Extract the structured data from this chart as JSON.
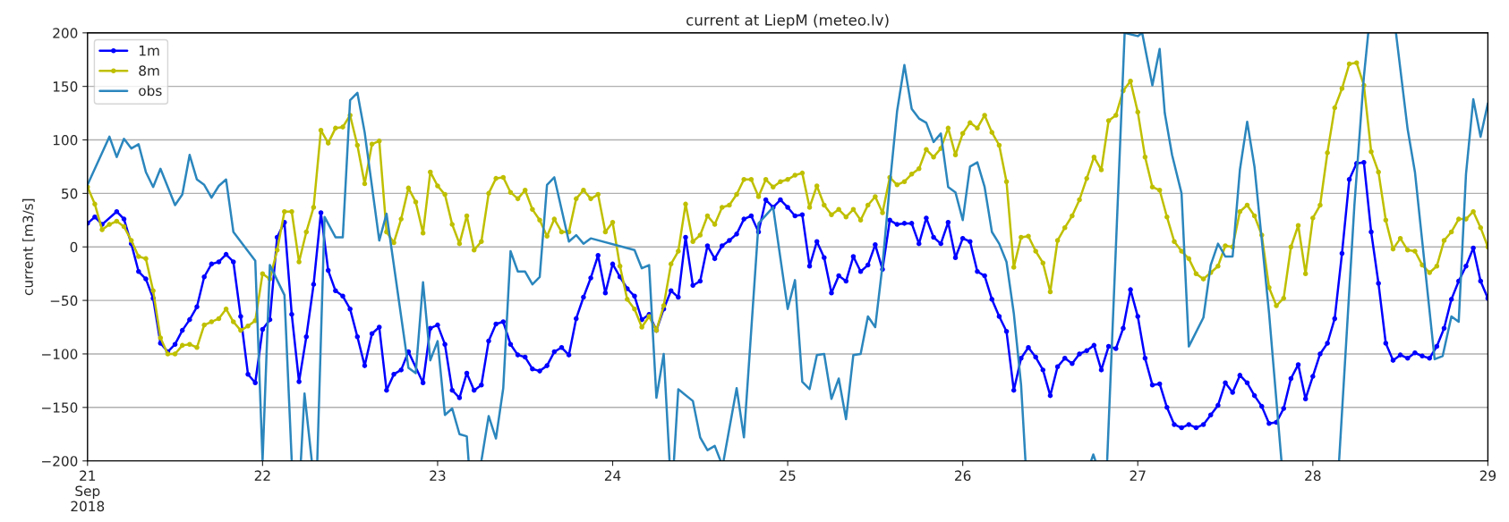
{
  "chart_data": {
    "type": "line",
    "title": "current at LiepM (meteo.lv)",
    "ylabel": "current [m3/s]",
    "xlim": [
      "2018-09-21",
      "2018-09-29"
    ],
    "xticks": [
      {
        "value": "2018-09-21",
        "label": "21\nSep\n2018"
      },
      {
        "value": "2018-09-22",
        "label": "22"
      },
      {
        "value": "2018-09-23",
        "label": "23"
      },
      {
        "value": "2018-09-24",
        "label": "24"
      },
      {
        "value": "2018-09-25",
        "label": "25"
      },
      {
        "value": "2018-09-26",
        "label": "26"
      },
      {
        "value": "2018-09-27",
        "label": "27"
      },
      {
        "value": "2018-09-28",
        "label": "28"
      },
      {
        "value": "2018-09-29",
        "label": "29"
      }
    ],
    "ylim": [
      -200,
      200
    ],
    "yticks": [
      -200,
      -150,
      -100,
      -50,
      0,
      50,
      100,
      150,
      200
    ],
    "grid": "y",
    "legend": "top left",
    "line_style": "solid",
    "series": [
      {
        "name": "1m",
        "color": "#0000ff",
        "marker": "circle",
        "x": [
          "2018-09-21T00:00",
          "2018-09-21T01:00",
          "2018-09-21T02:00",
          "2018-09-21T04:00",
          "2018-09-21T05:00",
          "2018-09-21T06:00",
          "2018-09-21T07:00",
          "2018-09-21T08:00",
          "2018-09-21T09:00",
          "2018-09-21T10:00",
          "2018-09-21T11:00",
          "2018-09-21T12:00",
          "2018-09-21T13:00",
          "2018-09-21T14:00",
          "2018-09-21T15:00",
          "2018-09-21T16:00",
          "2018-09-21T17:00",
          "2018-09-21T18:00",
          "2018-09-21T19:00",
          "2018-09-21T20:00",
          "2018-09-21T21:00",
          "2018-09-21T22:00",
          "2018-09-21T23:00",
          "2018-09-22T00:00",
          "2018-09-22T01:00",
          "2018-09-22T02:00",
          "2018-09-22T03:00",
          "2018-09-22T04:00",
          "2018-09-22T05:00",
          "2018-09-22T06:00",
          "2018-09-22T07:00",
          "2018-09-22T08:00",
          "2018-09-22T09:00",
          "2018-09-22T10:00",
          "2018-09-22T11:00",
          "2018-09-22T12:00",
          "2018-09-22T13:00",
          "2018-09-22T14:00",
          "2018-09-22T15:00",
          "2018-09-22T16:00",
          "2018-09-22T17:00",
          "2018-09-22T18:00",
          "2018-09-22T19:00",
          "2018-09-22T20:00",
          "2018-09-22T22:00",
          "2018-09-22T23:00",
          "2018-09-23T00:00",
          "2018-09-23T01:00",
          "2018-09-23T02:00",
          "2018-09-23T03:00",
          "2018-09-23T04:00",
          "2018-09-23T05:00",
          "2018-09-23T06:00",
          "2018-09-23T07:00",
          "2018-09-23T08:00",
          "2018-09-23T09:00",
          "2018-09-23T10:00",
          "2018-09-23T11:00",
          "2018-09-23T12:00",
          "2018-09-23T13:00",
          "2018-09-23T14:00",
          "2018-09-23T15:00",
          "2018-09-23T16:00",
          "2018-09-23T17:00",
          "2018-09-23T18:00",
          "2018-09-23T19:00",
          "2018-09-23T20:00",
          "2018-09-23T21:00",
          "2018-09-23T22:00",
          "2018-09-23T23:00",
          "2018-09-24T00:00",
          "2018-09-24T01:00",
          "2018-09-24T02:00",
          "2018-09-24T03:00",
          "2018-09-24T04:00",
          "2018-09-24T05:00",
          "2018-09-24T06:00",
          "2018-09-24T07:00",
          "2018-09-24T08:00",
          "2018-09-24T09:00",
          "2018-09-24T10:00",
          "2018-09-24T11:00",
          "2018-09-24T12:00",
          "2018-09-24T13:00",
          "2018-09-24T14:00",
          "2018-09-24T15:00",
          "2018-09-24T16:00",
          "2018-09-24T17:00",
          "2018-09-24T18:00",
          "2018-09-24T19:00",
          "2018-09-24T20:00",
          "2018-09-24T21:00",
          "2018-09-24T22:00",
          "2018-09-24T23:00",
          "2018-09-25T00:00",
          "2018-09-25T01:00",
          "2018-09-25T02:00",
          "2018-09-25T03:00",
          "2018-09-25T04:00",
          "2018-09-25T05:00",
          "2018-09-25T06:00",
          "2018-09-25T07:00",
          "2018-09-25T08:00",
          "2018-09-25T09:00",
          "2018-09-25T10:00",
          "2018-09-25T11:00",
          "2018-09-25T12:00",
          "2018-09-25T13:00",
          "2018-09-25T14:00",
          "2018-09-25T15:00",
          "2018-09-25T16:00",
          "2018-09-25T17:00",
          "2018-09-25T18:00",
          "2018-09-25T19:00",
          "2018-09-25T20:00",
          "2018-09-25T21:00",
          "2018-09-25T22:00",
          "2018-09-25T23:00",
          "2018-09-26T00:00",
          "2018-09-26T01:00",
          "2018-09-26T02:00",
          "2018-09-26T03:00",
          "2018-09-26T04:00",
          "2018-09-26T05:00",
          "2018-09-26T06:00",
          "2018-09-26T07:00",
          "2018-09-26T08:00",
          "2018-09-26T09:00",
          "2018-09-26T10:00",
          "2018-09-26T11:00",
          "2018-09-26T12:00",
          "2018-09-26T13:00",
          "2018-09-26T14:00",
          "2018-09-26T15:00",
          "2018-09-26T16:00",
          "2018-09-26T17:00",
          "2018-09-26T18:00",
          "2018-09-26T19:00",
          "2018-09-26T20:00",
          "2018-09-26T21:00",
          "2018-09-26T22:00",
          "2018-09-26T23:00",
          "2018-09-27T00:00",
          "2018-09-27T01:00",
          "2018-09-27T02:00",
          "2018-09-27T03:00",
          "2018-09-27T04:00",
          "2018-09-27T05:00",
          "2018-09-27T06:00",
          "2018-09-27T07:00",
          "2018-09-27T08:00",
          "2018-09-27T09:00",
          "2018-09-27T10:00",
          "2018-09-27T11:00",
          "2018-09-27T12:00",
          "2018-09-27T13:00",
          "2018-09-27T14:00",
          "2018-09-27T15:00",
          "2018-09-27T16:00",
          "2018-09-27T17:00",
          "2018-09-27T18:00",
          "2018-09-27T19:00",
          "2018-09-27T20:00",
          "2018-09-27T21:00",
          "2018-09-27T22:00",
          "2018-09-27T23:00",
          "2018-09-28T00:00",
          "2018-09-28T01:00",
          "2018-09-28T02:00",
          "2018-09-28T03:00",
          "2018-09-28T04:00",
          "2018-09-28T05:00",
          "2018-09-28T06:00",
          "2018-09-28T07:00",
          "2018-09-28T08:00",
          "2018-09-28T09:00",
          "2018-09-28T10:00",
          "2018-09-28T11:00",
          "2018-09-28T12:00",
          "2018-09-28T13:00",
          "2018-09-28T14:00",
          "2018-09-28T15:00",
          "2018-09-28T16:00",
          "2018-09-28T17:00",
          "2018-09-28T18:00",
          "2018-09-28T19:00",
          "2018-09-28T20:00",
          "2018-09-28T21:00",
          "2018-09-28T22:00",
          "2018-09-28T23:00",
          "2018-09-29T00:00"
        ],
        "values": [
          22,
          28,
          21,
          33,
          26,
          3,
          -23,
          -30,
          -48,
          -90,
          -98,
          -91,
          -78,
          -68,
          -56,
          -28,
          -16,
          -14,
          -7,
          -14,
          -65,
          -119,
          -127,
          -77,
          -68,
          9,
          23,
          -63,
          -126,
          -84,
          -35,
          32,
          -22,
          -41,
          -46,
          -58,
          -84,
          -111,
          -81,
          -75,
          -134,
          -119,
          -115,
          -98,
          -127,
          -76,
          -73,
          -91,
          -134,
          -141,
          -118,
          -134,
          -129,
          -88,
          -72,
          -70,
          -91,
          -101,
          -103,
          -114,
          -116,
          -111,
          -98,
          -94,
          -101,
          -67,
          -47,
          -29,
          -8,
          -43,
          -16,
          -28,
          -39,
          -46,
          -68,
          -63,
          -78,
          -58,
          -41,
          -47,
          9,
          -36,
          -32,
          1,
          -11,
          1,
          6,
          12,
          26,
          29,
          14,
          44,
          37,
          44,
          37,
          29,
          30,
          -18,
          5,
          -10,
          -43,
          -27,
          -32,
          -9,
          -23,
          -17,
          2,
          -21,
          25,
          21,
          22,
          22,
          3,
          27,
          9,
          3,
          23,
          -10,
          8,
          5,
          -23,
          -27,
          -49,
          -65,
          -79,
          -134,
          -104,
          -94,
          -103,
          -115,
          -139,
          -112,
          -104,
          -109,
          -100,
          -97,
          -92,
          -115,
          -93,
          -95,
          -76,
          -40,
          -65,
          -104,
          -129,
          -128,
          -150,
          -166,
          -169,
          -166,
          -169,
          -166,
          -157,
          -148,
          -127,
          -136,
          -120,
          -127,
          -139,
          -149,
          -165,
          -164,
          -151,
          -123,
          -110,
          -142,
          -121,
          -100,
          -90,
          -67,
          -6,
          63,
          78,
          79,
          14,
          -34,
          -90,
          -106,
          -101,
          -104,
          -99,
          -102,
          -104,
          -93,
          -76,
          -49,
          -32,
          -18,
          -1,
          -32,
          -48
        ]
      },
      {
        "name": "8m",
        "color": "#bfbf00",
        "marker": "circle",
        "x": [
          "2018-09-21T00:00",
          "2018-09-21T01:00",
          "2018-09-21T02:00",
          "2018-09-21T03:00",
          "2018-09-21T04:00",
          "2018-09-21T05:00",
          "2018-09-21T06:00",
          "2018-09-21T07:00",
          "2018-09-21T08:00",
          "2018-09-21T09:00",
          "2018-09-21T10:00",
          "2018-09-21T11:00",
          "2018-09-21T12:00",
          "2018-09-21T13:00",
          "2018-09-21T14:00",
          "2018-09-21T15:00",
          "2018-09-21T16:00",
          "2018-09-21T17:00",
          "2018-09-21T18:00",
          "2018-09-21T19:00",
          "2018-09-21T20:00",
          "2018-09-21T21:00",
          "2018-09-21T22:00",
          "2018-09-21T23:00",
          "2018-09-22T00:00",
          "2018-09-22T01:00",
          "2018-09-22T02:00",
          "2018-09-22T03:00",
          "2018-09-22T04:00",
          "2018-09-22T05:00",
          "2018-09-22T06:00",
          "2018-09-22T07:00",
          "2018-09-22T08:00",
          "2018-09-22T09:00",
          "2018-09-22T10:00",
          "2018-09-22T11:00",
          "2018-09-22T12:00",
          "2018-09-22T13:00",
          "2018-09-22T14:00",
          "2018-09-22T15:00",
          "2018-09-22T16:00",
          "2018-09-22T17:00",
          "2018-09-22T18:00",
          "2018-09-22T19:00",
          "2018-09-22T20:00",
          "2018-09-22T21:00",
          "2018-09-22T22:00",
          "2018-09-22T23:00",
          "2018-09-23T00:00",
          "2018-09-23T01:00",
          "2018-09-23T02:00",
          "2018-09-23T03:00",
          "2018-09-23T04:00",
          "2018-09-23T05:00",
          "2018-09-23T06:00",
          "2018-09-23T07:00",
          "2018-09-23T08:00",
          "2018-09-23T09:00",
          "2018-09-23T10:00",
          "2018-09-23T11:00",
          "2018-09-23T12:00",
          "2018-09-23T13:00",
          "2018-09-23T14:00",
          "2018-09-23T15:00",
          "2018-09-23T16:00",
          "2018-09-23T17:00",
          "2018-09-23T18:00",
          "2018-09-23T19:00",
          "2018-09-23T20:00",
          "2018-09-23T21:00",
          "2018-09-23T22:00",
          "2018-09-23T23:00",
          "2018-09-24T00:00",
          "2018-09-24T01:00",
          "2018-09-24T02:00",
          "2018-09-24T03:00",
          "2018-09-24T04:00",
          "2018-09-24T05:00",
          "2018-09-24T06:00",
          "2018-09-24T07:00",
          "2018-09-24T08:00",
          "2018-09-24T09:00",
          "2018-09-24T10:00",
          "2018-09-24T11:00",
          "2018-09-24T12:00",
          "2018-09-24T13:00",
          "2018-09-24T14:00",
          "2018-09-24T15:00",
          "2018-09-24T16:00",
          "2018-09-24T17:00",
          "2018-09-24T18:00",
          "2018-09-24T19:00",
          "2018-09-24T20:00",
          "2018-09-24T21:00",
          "2018-09-24T22:00",
          "2018-09-24T23:00",
          "2018-09-25T00:00",
          "2018-09-25T01:00",
          "2018-09-25T02:00",
          "2018-09-25T03:00",
          "2018-09-25T04:00",
          "2018-09-25T05:00",
          "2018-09-25T06:00",
          "2018-09-25T07:00",
          "2018-09-25T08:00",
          "2018-09-25T09:00",
          "2018-09-25T10:00",
          "2018-09-25T11:00",
          "2018-09-25T12:00",
          "2018-09-25T13:00",
          "2018-09-25T14:00",
          "2018-09-25T15:00",
          "2018-09-25T16:00",
          "2018-09-25T17:00",
          "2018-09-25T18:00",
          "2018-09-25T19:00",
          "2018-09-25T20:00",
          "2018-09-25T21:00",
          "2018-09-25T22:00",
          "2018-09-25T23:00",
          "2018-09-26T00:00",
          "2018-09-26T01:00",
          "2018-09-26T02:00",
          "2018-09-26T03:00",
          "2018-09-26T04:00",
          "2018-09-26T05:00",
          "2018-09-26T06:00",
          "2018-09-26T07:00",
          "2018-09-26T08:00",
          "2018-09-26T09:00",
          "2018-09-26T10:00",
          "2018-09-26T11:00",
          "2018-09-26T12:00",
          "2018-09-26T13:00",
          "2018-09-26T14:00",
          "2018-09-26T15:00",
          "2018-09-26T16:00",
          "2018-09-26T17:00",
          "2018-09-26T18:00",
          "2018-09-26T19:00",
          "2018-09-26T20:00",
          "2018-09-26T21:00",
          "2018-09-26T22:00",
          "2018-09-26T23:00",
          "2018-09-27T00:00",
          "2018-09-27T01:00",
          "2018-09-27T02:00",
          "2018-09-27T03:00",
          "2018-09-27T04:00",
          "2018-09-27T05:00",
          "2018-09-27T06:00",
          "2018-09-27T07:00",
          "2018-09-27T08:00",
          "2018-09-27T09:00",
          "2018-09-27T10:00",
          "2018-09-27T11:00",
          "2018-09-27T12:00",
          "2018-09-27T13:00",
          "2018-09-27T14:00",
          "2018-09-27T15:00",
          "2018-09-27T16:00",
          "2018-09-27T17:00",
          "2018-09-27T18:00",
          "2018-09-27T19:00",
          "2018-09-27T20:00",
          "2018-09-27T21:00",
          "2018-09-27T22:00",
          "2018-09-27T23:00",
          "2018-09-28T00:00",
          "2018-09-28T01:00",
          "2018-09-28T02:00",
          "2018-09-28T03:00",
          "2018-09-28T04:00",
          "2018-09-28T05:00",
          "2018-09-28T06:00",
          "2018-09-28T07:00",
          "2018-09-28T08:00",
          "2018-09-28T09:00",
          "2018-09-28T10:00",
          "2018-09-28T11:00",
          "2018-09-28T12:00",
          "2018-09-28T13:00",
          "2018-09-28T14:00",
          "2018-09-28T15:00",
          "2018-09-28T16:00",
          "2018-09-28T17:00",
          "2018-09-28T18:00",
          "2018-09-28T19:00",
          "2018-09-28T20:00",
          "2018-09-28T21:00",
          "2018-09-28T22:00",
          "2018-09-28T23:00",
          "2018-09-29T00:00"
        ],
        "values": [
          56,
          40,
          16,
          21,
          24,
          19,
          6,
          -9,
          -11,
          -41,
          -85,
          -100,
          -100,
          -92,
          -91,
          -94,
          -73,
          -70,
          -67,
          -58,
          -70,
          -78,
          -74,
          -69,
          -25,
          -30,
          -3,
          33,
          33,
          -14,
          14,
          37,
          109,
          97,
          111,
          112,
          123,
          95,
          59,
          96,
          99,
          14,
          4,
          26,
          55,
          42,
          13,
          70,
          57,
          49,
          21,
          3,
          29,
          -3,
          5,
          50,
          64,
          65,
          51,
          45,
          53,
          35,
          25,
          10,
          26,
          14,
          14,
          45,
          53,
          45,
          49,
          14,
          23,
          -18,
          -49,
          -58,
          -75,
          -65,
          -78,
          -55,
          -16,
          -4,
          40,
          5,
          11,
          29,
          21,
          37,
          39,
          49,
          63,
          63,
          47,
          63,
          56,
          61,
          63,
          67,
          69,
          37,
          57,
          39,
          30,
          35,
          28,
          35,
          25,
          39,
          47,
          32,
          65,
          58,
          61,
          68,
          73,
          91,
          84,
          92,
          111,
          86,
          106,
          116,
          111,
          123,
          107,
          95,
          61,
          -19,
          9,
          10,
          -4,
          -15,
          -42,
          6,
          18,
          29,
          44,
          64,
          84,
          72,
          118,
          123,
          146,
          155,
          126,
          84,
          56,
          53,
          28,
          5,
          -4,
          -11,
          -25,
          -30,
          -24,
          -18,
          1,
          0,
          33,
          39,
          29,
          11,
          -38,
          -55,
          -48,
          0,
          20,
          -25,
          27,
          39,
          88,
          130,
          148,
          171,
          172,
          151,
          89,
          70,
          25,
          -2,
          8,
          -3,
          -4,
          -17,
          -24,
          -18,
          6,
          14,
          26,
          26,
          33,
          18,
          0
        ]
      },
      {
        "name": "obs",
        "color": "#2b86bd",
        "marker": "none",
        "x": [
          "2018-09-21T00:00",
          "2018-09-21T03:00",
          "2018-09-21T04:00",
          "2018-09-21T05:00",
          "2018-09-21T06:00",
          "2018-09-21T07:00",
          "2018-09-21T08:00",
          "2018-09-21T09:00",
          "2018-09-21T10:00",
          "2018-09-21T12:00",
          "2018-09-21T13:00",
          "2018-09-21T14:00",
          "2018-09-21T15:00",
          "2018-09-21T16:00",
          "2018-09-21T17:00",
          "2018-09-21T18:00",
          "2018-09-21T19:00",
          "2018-09-21T20:00",
          "2018-09-21T23:00",
          "2018-09-22T00:00",
          "2018-09-22T01:00",
          "2018-09-22T03:00",
          "2018-09-22T04:00",
          "2018-09-22T04:30",
          "2018-09-22T05:15",
          "2018-09-22T05:45",
          "2018-09-22T06:45",
          "2018-09-22T07:00",
          "2018-09-22T07:30",
          "2018-09-22T08:30",
          "2018-09-22T10:00",
          "2018-09-22T11:00",
          "2018-09-22T12:00",
          "2018-09-22T13:00",
          "2018-09-22T14:00",
          "2018-09-22T16:00",
          "2018-09-22T17:00",
          "2018-09-22T20:00",
          "2018-09-22T21:00",
          "2018-09-22T22:00",
          "2018-09-22T23:00",
          "2018-09-23T00:00",
          "2018-09-23T01:00",
          "2018-09-23T02:00",
          "2018-09-23T03:00",
          "2018-09-23T04:00",
          "2018-09-23T04:15",
          "2018-09-23T05:00",
          "2018-09-23T06:00",
          "2018-09-23T07:00",
          "2018-09-23T08:00",
          "2018-09-23T09:00",
          "2018-09-23T10:00",
          "2018-09-23T11:00",
          "2018-09-23T12:00",
          "2018-09-23T13:00",
          "2018-09-23T14:00",
          "2018-09-23T15:00",
          "2018-09-23T16:00",
          "2018-09-23T18:00",
          "2018-09-23T19:00",
          "2018-09-23T20:00",
          "2018-09-23T21:00",
          "2018-09-24T03:00",
          "2018-09-24T04:00",
          "2018-09-24T05:00",
          "2018-09-24T06:00",
          "2018-09-24T07:00",
          "2018-09-24T07:48",
          "2018-09-24T08:06",
          "2018-09-24T08:24",
          "2018-09-24T09:00",
          "2018-09-24T11:00",
          "2018-09-24T12:00",
          "2018-09-24T13:00",
          "2018-09-24T14:00",
          "2018-09-24T14:48",
          "2018-09-24T15:00",
          "2018-09-24T15:12",
          "2018-09-24T17:00",
          "2018-09-24T18:00",
          "2018-09-24T20:00",
          "2018-09-24T22:00",
          "2018-09-25T00:00",
          "2018-09-25T01:00",
          "2018-09-25T02:00",
          "2018-09-25T03:00",
          "2018-09-25T04:00",
          "2018-09-25T05:00",
          "2018-09-25T06:00",
          "2018-09-25T07:00",
          "2018-09-25T08:00",
          "2018-09-25T09:00",
          "2018-09-25T10:00",
          "2018-09-25T11:00",
          "2018-09-25T12:00",
          "2018-09-25T13:00",
          "2018-09-25T14:00",
          "2018-09-25T15:00",
          "2018-09-25T16:00",
          "2018-09-25T17:00",
          "2018-09-25T18:00",
          "2018-09-25T19:00",
          "2018-09-25T20:00",
          "2018-09-25T21:00",
          "2018-09-25T22:00",
          "2018-09-25T23:00",
          "2018-09-26T00:00",
          "2018-09-26T01:00",
          "2018-09-26T02:00",
          "2018-09-26T03:00",
          "2018-09-26T04:00",
          "2018-09-26T05:00",
          "2018-09-26T06:00",
          "2018-09-26T07:00",
          "2018-09-26T08:00",
          "2018-09-26T08:36",
          "2018-09-26T09:00",
          "2018-09-26T17:36",
          "2018-09-26T17:54",
          "2018-09-26T18:12",
          "2018-09-26T18:30",
          "2018-09-26T19:48",
          "2018-09-26T22:12",
          "2018-09-27T00:00",
          "2018-09-27T00:36",
          "2018-09-27T02:00",
          "2018-09-27T03:00",
          "2018-09-27T03:42",
          "2018-09-27T04:42",
          "2018-09-27T06:00",
          "2018-09-27T07:00",
          "2018-09-27T09:00",
          "2018-09-27T10:00",
          "2018-09-27T11:00",
          "2018-09-27T12:00",
          "2018-09-27T13:00",
          "2018-09-27T14:00",
          "2018-09-27T15:00",
          "2018-09-27T16:00",
          "2018-09-27T18:00",
          "2018-09-27T19:42",
          "2018-09-27T21:00",
          "2018-09-28T03:36",
          "2018-09-28T05:42",
          "2018-09-28T07:00",
          "2018-09-28T07:36",
          "2018-09-28T09:00",
          "2018-09-28T11:24",
          "2018-09-28T13:00",
          "2018-09-28T14:00",
          "2018-09-28T16:42",
          "2018-09-28T17:48",
          "2018-09-28T19:00",
          "2018-09-28T20:00",
          "2018-09-28T21:00",
          "2018-09-28T22:00",
          "2018-09-28T23:00",
          "2018-09-29T00:00"
        ],
        "values": [
          58,
          103,
          84,
          101,
          92,
          96,
          70,
          56,
          73,
          39,
          49,
          86,
          63,
          58,
          46,
          57,
          63,
          14,
          -13,
          -200,
          -17,
          -45,
          -200,
          null,
          -200,
          -137,
          -200,
          null,
          -200,
          28,
          9,
          9,
          137,
          144,
          107,
          6,
          31,
          -113,
          -118,
          -33,
          -106,
          -88,
          -157,
          -151,
          -175,
          -177,
          -200,
          null,
          -200,
          -158,
          -179,
          -132,
          -4,
          -23,
          -23,
          -35,
          -28,
          58,
          65,
          5,
          11,
          3,
          8,
          -3,
          -20,
          -17,
          -141,
          -100,
          -200,
          null,
          -200,
          -133,
          -144,
          -178,
          -190,
          -186,
          -200,
          null,
          -200,
          -132,
          -178,
          22,
          37,
          -58,
          -31,
          -126,
          -133,
          -101,
          -100,
          -142,
          -123,
          -161,
          -101,
          -100,
          -65,
          -75,
          -17,
          58,
          127,
          170,
          129,
          120,
          116,
          98,
          106,
          56,
          51,
          25,
          75,
          79,
          56,
          14,
          3,
          -14,
          -62,
          -129,
          -200,
          null,
          -200,
          -194,
          -200,
          null,
          -200,
          200,
          197,
          200,
          151,
          185,
          125,
          86,
          50,
          -93,
          -66,
          -17,
          3,
          -9,
          -9,
          72,
          117,
          75,
          -62,
          -200,
          null,
          -200,
          39,
          159,
          200,
          null,
          200,
          110,
          70,
          -105,
          -102,
          -65,
          -70,
          68,
          138,
          103,
          134
        ]
      }
    ]
  }
}
